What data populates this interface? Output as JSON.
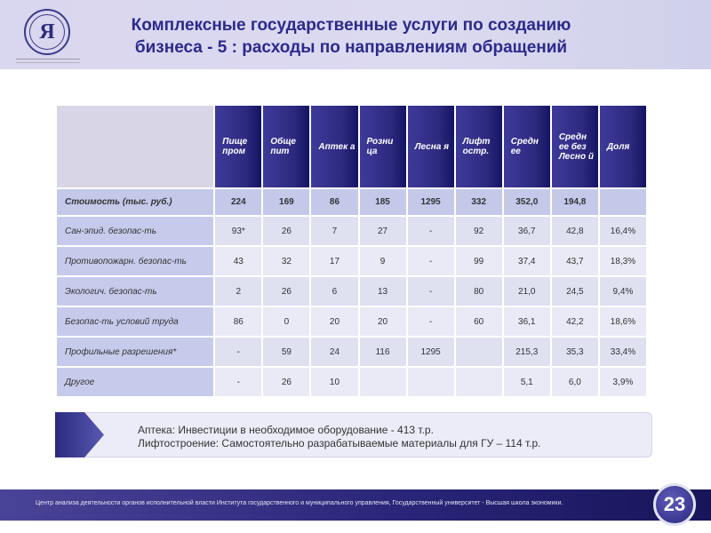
{
  "header": {
    "title_line1": "Комплексные государственные услуги по созданию",
    "title_line2": "бизнеса - 5 : расходы по направлениям обращений",
    "logo_letter": "Я"
  },
  "table": {
    "columns": [
      "Пище пром",
      "Обще пит",
      "Аптек а",
      "Розни ца",
      "Лесна я",
      "Лифт остр.",
      "Средн ее",
      "Средн ее без Лесно й",
      "Доля"
    ],
    "cost_row": {
      "label": "Стоимость (тыс. руб.)",
      "values": [
        "224",
        "169",
        "86",
        "185",
        "1295",
        "332",
        "352,0",
        "194,8",
        ""
      ]
    },
    "rows": [
      {
        "label": "Сан-эпид. безопас-ть",
        "values": [
          "93*",
          "26",
          "7",
          "27",
          "-",
          "92",
          "36,7",
          "42,8",
          "16,4%"
        ]
      },
      {
        "label": "Противопожарн. безопас-ть",
        "values": [
          "43",
          "32",
          "17",
          "9",
          "-",
          "99",
          "37,4",
          "43,7",
          "18,3%"
        ]
      },
      {
        "label": "Экологич. безопас-ть",
        "values": [
          "2",
          "26",
          "6",
          "13",
          "-",
          "80",
          "21,0",
          "24,5",
          "9,4%"
        ]
      },
      {
        "label": "Безопас-ть условий труда",
        "values": [
          "86",
          "0",
          "20",
          "20",
          "-",
          "60",
          "36,1",
          "42,2",
          "18,6%"
        ]
      },
      {
        "label": "Профильные разрешения*",
        "values": [
          "-",
          "59",
          "24",
          "116",
          "1295",
          "",
          "215,3",
          "35,3",
          "33,4%"
        ]
      },
      {
        "label": "Другое",
        "values": [
          "-",
          "26",
          "10",
          "",
          "",
          "",
          "5,1",
          "6,0",
          "3,9%"
        ]
      }
    ]
  },
  "note": {
    "line1": "Аптека: Инвестиции в необходимое оборудование - 413 т.р.",
    "line2": "Лифтостроение: Самостоятельно разрабатываемые материалы для ГУ – 114 т.р."
  },
  "footer": {
    "text": "Центр анализа деятельности органов исполнительной власти Института государственного  и муниципального управления, Государственный университет  - Высшая школа экономики.",
    "page_number": "23"
  }
}
